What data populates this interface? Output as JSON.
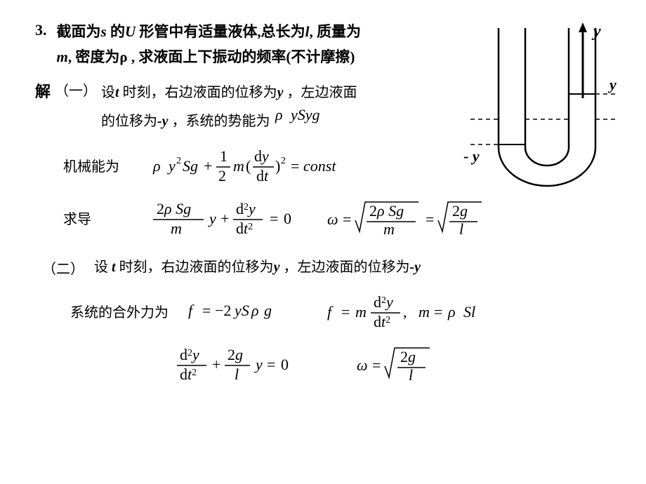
{
  "problem": {
    "number": "3.",
    "line1_a": "截面为",
    "line1_b": " 的",
    "line1_c": " 形管中有适量液体,总长为",
    "line1_d": ", 质量为",
    "line2_a": ", 密度为",
    "line2_b": " , 求液面上下振动的频率(不计摩擦)",
    "s": "s",
    "U": "U",
    "l": "l",
    "m": "m",
    "rho": "ρ"
  },
  "solution": {
    "label": "解",
    "one": "（一）",
    "two": "（二）",
    "s1_a": "设",
    "s1_b": " 时刻，右边液面的位移为",
    "s1_c": " ，左边液面",
    "s1_d": "的位移为",
    "s1_e": " ，系统的势能为",
    "t": "t",
    "y": "y",
    "my": "-y",
    "label_energy": "机械能为",
    "label_deriv": "求导",
    "s2_a": "设 ",
    "s2_b": " 时刻，右边液面的位移为",
    "s2_c": " ，左边液面的位移为",
    "label_force": "系统的合外力为"
  },
  "diagram": {
    "y_axis": "y",
    "y_right": "y",
    "minus_y": "- y",
    "stroke": "#000000",
    "stroke_width": 2,
    "bold_stroke_width": 3
  },
  "colors": {
    "text": "#000000",
    "bg": "#ffffff"
  }
}
